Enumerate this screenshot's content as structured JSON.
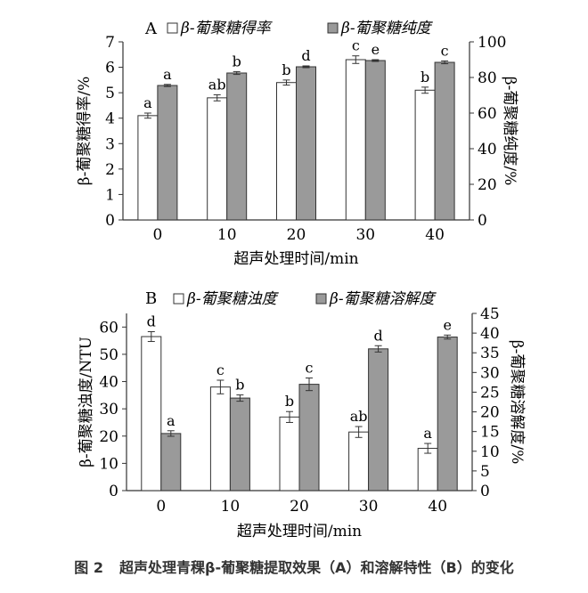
{
  "caption": {
    "number": "图 2",
    "text": "超声处理青稞β-葡聚糖提取效果（A）和溶解特性（B）的变化"
  },
  "colors": {
    "bar_light": "#ffffff",
    "bar_dark": "#9a9a9a",
    "axis": "#333333"
  },
  "chart_data": [
    {
      "type": "bar",
      "panel": "A",
      "categories": [
        "0",
        "10",
        "20",
        "30",
        "40"
      ],
      "xlabel": "超声处理时间/min",
      "ylabel": "β-葡聚糖得率/%",
      "y2label": "β-葡聚糖纯度/%",
      "ylim": [
        0,
        7
      ],
      "yticks": [
        "0",
        "1",
        "2",
        "3",
        "4",
        "5",
        "6",
        "7"
      ],
      "y2lim": [
        0,
        100
      ],
      "y2ticks": [
        "0",
        "20",
        "40",
        "60",
        "80",
        "100"
      ],
      "legend_position": "top",
      "series": [
        {
          "name": "β-葡聚糖得率",
          "axis": "left",
          "fill": "white",
          "values": [
            4.1,
            4.8,
            5.4,
            6.3,
            5.1
          ],
          "errors": [
            0.1,
            0.12,
            0.1,
            0.15,
            0.12
          ],
          "labels": [
            "a",
            "ab",
            "b",
            "c",
            "b"
          ]
        },
        {
          "name": "β-葡聚糖纯度",
          "axis": "right",
          "fill": "gray",
          "values": [
            75.5,
            82.5,
            86.0,
            89.5,
            88.5
          ],
          "errors": [
            0.6,
            0.8,
            0.5,
            0.5,
            0.8
          ],
          "labels": [
            "a",
            "b",
            "d",
            "e",
            "c"
          ]
        }
      ]
    },
    {
      "type": "bar",
      "panel": "B",
      "categories": [
        "0",
        "10",
        "20",
        "30",
        "40"
      ],
      "xlabel": "超声处理时间/min",
      "ylabel": "β-葡聚糖浊度/NTU",
      "y2label": "β-葡聚糖溶解度/%",
      "ylim": [
        0,
        65
      ],
      "yticks": [
        "0",
        "10",
        "20",
        "30",
        "40",
        "50",
        "60"
      ],
      "y2lim": [
        0,
        45
      ],
      "y2ticks": [
        "0",
        "5",
        "10",
        "15",
        "20",
        "25",
        "30",
        "35",
        "40",
        "45"
      ],
      "legend_position": "top",
      "series": [
        {
          "name": "β-葡聚糖浊度",
          "axis": "left",
          "fill": "white",
          "values": [
            56.5,
            38.0,
            27.0,
            21.5,
            15.5
          ],
          "errors": [
            1.8,
            2.5,
            2.0,
            2.0,
            1.8
          ],
          "labels": [
            "d",
            "c",
            "b",
            "ab",
            "a"
          ]
        },
        {
          "name": "β-葡聚糖溶解度",
          "axis": "right",
          "fill": "gray",
          "values": [
            14.5,
            23.5,
            27.0,
            36.0,
            39.0
          ],
          "errors": [
            0.7,
            0.8,
            1.6,
            0.8,
            0.5
          ],
          "labels": [
            "a",
            "b",
            "c",
            "d",
            "e"
          ]
        }
      ]
    }
  ]
}
